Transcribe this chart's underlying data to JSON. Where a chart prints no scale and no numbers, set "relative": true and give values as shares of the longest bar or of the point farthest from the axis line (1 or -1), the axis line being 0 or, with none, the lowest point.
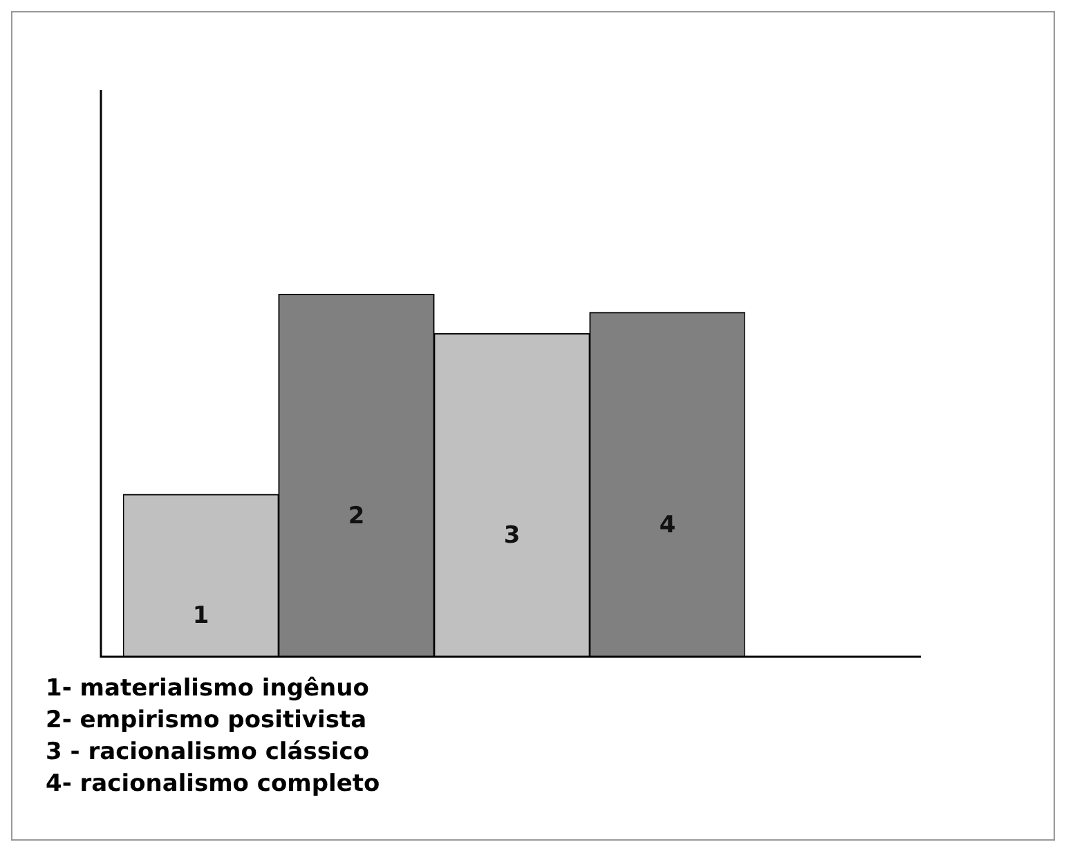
{
  "chart_data": {
    "type": "bar",
    "relative": true,
    "categories": [
      "1",
      "2",
      "3",
      "4"
    ],
    "values": [
      0.448,
      1,
      0.892,
      0.95
    ],
    "colors": [
      "#c0c0c0",
      "#808080",
      "#c0c0c0",
      "#808080"
    ],
    "annotations": [
      "1- materialismo ingênuo",
      "2- empirismo positivista",
      "3 - racionalismo clássico",
      "4- racionalismo completo"
    ]
  }
}
